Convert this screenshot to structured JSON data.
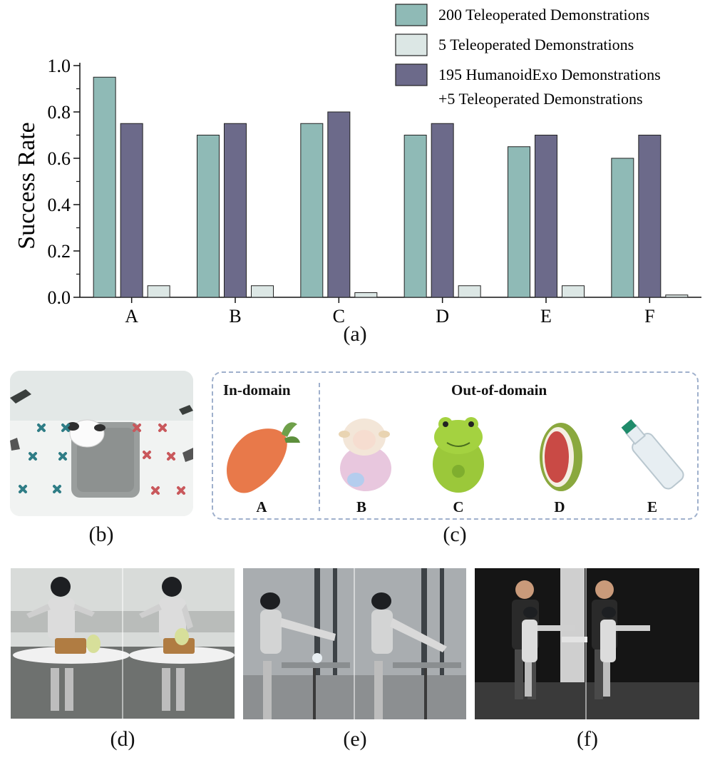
{
  "chart_data": {
    "type": "bar",
    "categories": [
      "A",
      "B",
      "C",
      "D",
      "E",
      "F"
    ],
    "series": [
      {
        "name": "200 Teleoperated Demonstrations",
        "values": [
          0.95,
          0.7,
          0.75,
          0.7,
          0.65,
          0.6
        ],
        "color": "#8fbab6"
      },
      {
        "name": "195 HumanoidExo Demonstrations +5 Teleoperated Demonstrations",
        "values": [
          0.75,
          0.75,
          0.8,
          0.75,
          0.7,
          0.7
        ],
        "color": "#6c6a8a"
      },
      {
        "name": "5 Teleoperated Demonstrations",
        "values": [
          0.05,
          0.05,
          0.02,
          0.05,
          0.05,
          0.01
        ],
        "color": "#dce7e5"
      }
    ],
    "legend": [
      {
        "lines": [
          "200 Teleoperated Demonstrations"
        ],
        "color": "#8fbab6"
      },
      {
        "lines": [
          "5 Teleoperated Demonstrations"
        ],
        "color": "#dce7e5"
      },
      {
        "lines": [
          "195 HumanoidExo Demonstrations",
          "+5 Teleoperated Demonstrations"
        ],
        "color": "#6c6a8a"
      }
    ],
    "ylabel": "Success Rate",
    "xlabel": "",
    "ylim": [
      0,
      1.0
    ],
    "yticks": [
      "0.0",
      "0.2",
      "0.4",
      "0.6",
      "0.8",
      "1.0"
    ],
    "legend_position": "top-right",
    "caption": "(a)"
  },
  "panel_b": {
    "caption": "(b)"
  },
  "panel_c": {
    "caption": "(c)",
    "in_domain_label": "In-domain",
    "out_domain_label": "Out-of-domain",
    "objects": [
      {
        "label": "A",
        "name": "carrot plush"
      },
      {
        "label": "B",
        "name": "sheep plush"
      },
      {
        "label": "C",
        "name": "frog plush"
      },
      {
        "label": "D",
        "name": "watermelon plush"
      },
      {
        "label": "E",
        "name": "bottle"
      }
    ]
  },
  "panel_d": {
    "caption": "(d)"
  },
  "panel_e": {
    "caption": "(e)"
  },
  "panel_f": {
    "caption": "(f)"
  }
}
